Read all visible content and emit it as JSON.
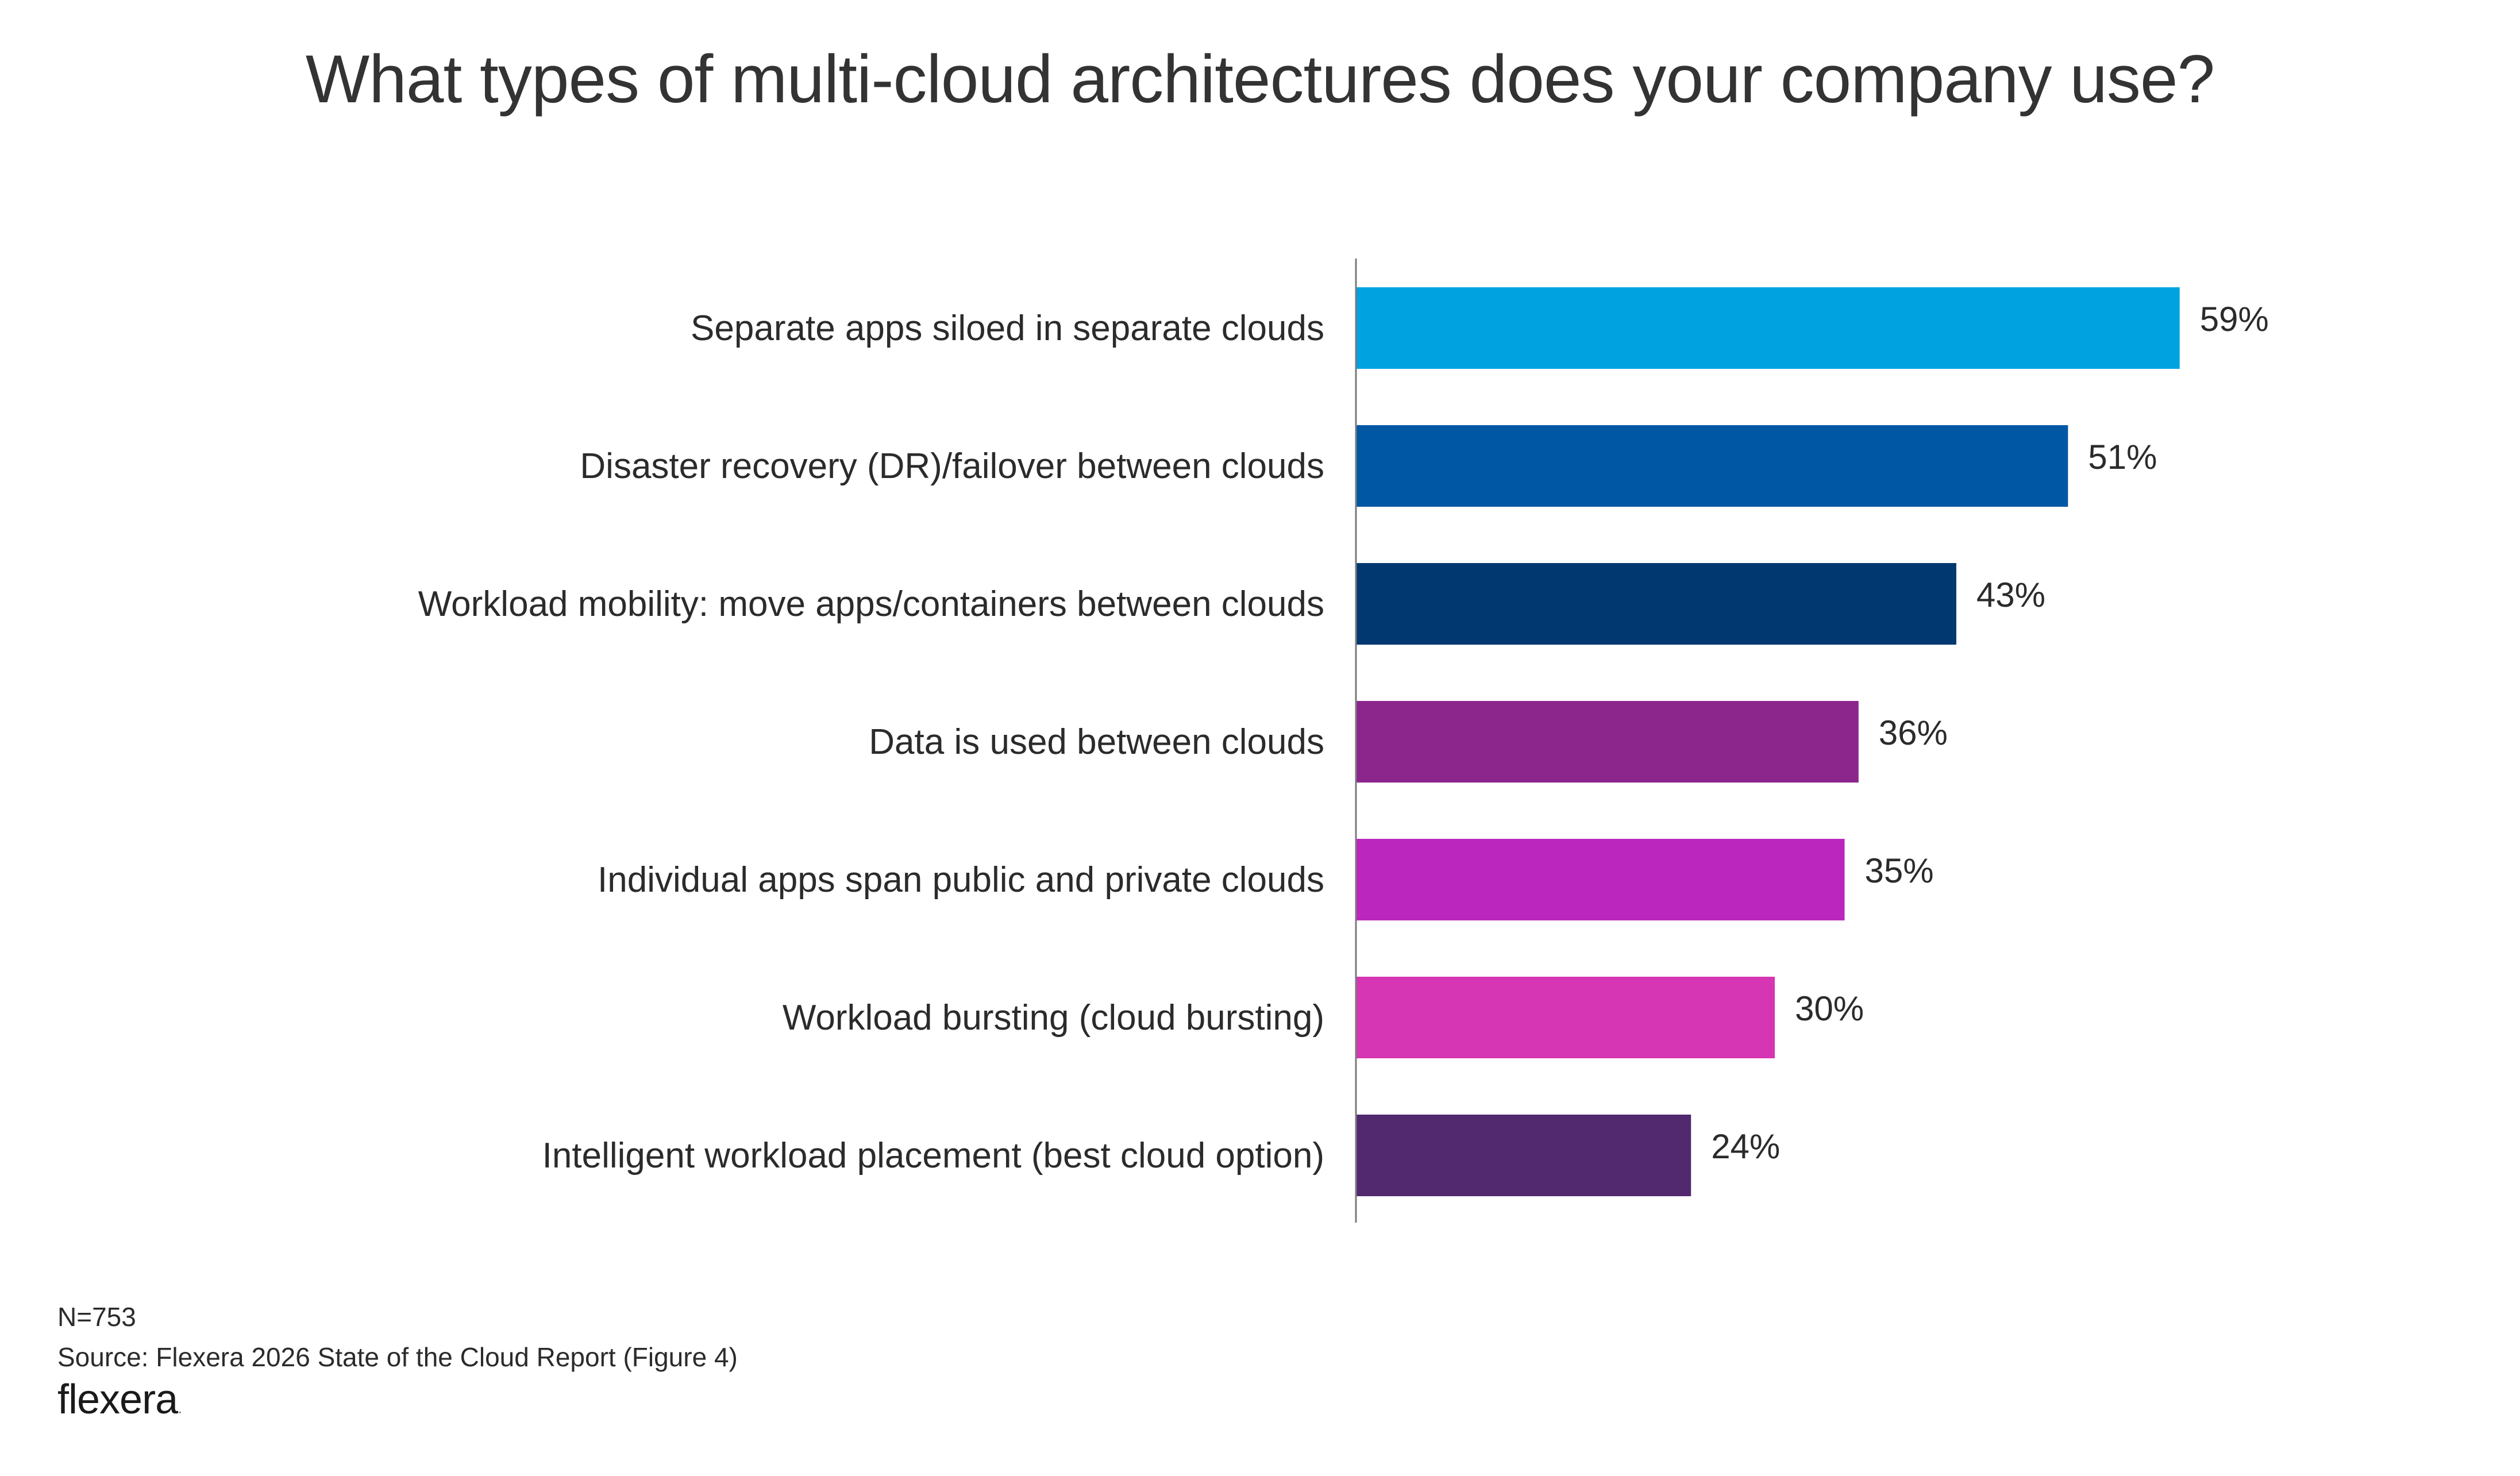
{
  "chart_data": {
    "type": "bar",
    "orientation": "horizontal",
    "title": "What types of multi-cloud architectures does your company use?",
    "categories": [
      "Separate apps siloed in separate clouds",
      "Disaster recovery (DR)/failover between clouds",
      "Workload mobility: move apps/containers between clouds",
      "Data is used between clouds",
      "Individual apps span public and private clouds",
      "Workload bursting (cloud bursting)",
      "Intelligent workload placement (best cloud option)"
    ],
    "values": [
      59,
      51,
      43,
      36,
      35,
      30,
      24
    ],
    "value_labels": [
      "59%",
      "51%",
      "43%",
      "36%",
      "35%",
      "30%",
      "24%"
    ],
    "bar_colors": [
      "#00A3E0",
      "#0057A3",
      "#00386F",
      "#8C258C",
      "#BB26BE",
      "#D636B3",
      "#52286F"
    ],
    "xlim": [
      0,
      65
    ],
    "grid": false,
    "legend": "none"
  },
  "footer": {
    "sample": "N=753",
    "source": "Source: Flexera 2026 State of the Cloud Report (Figure 4)"
  },
  "brand": {
    "name": "flexera",
    "mark": "."
  }
}
